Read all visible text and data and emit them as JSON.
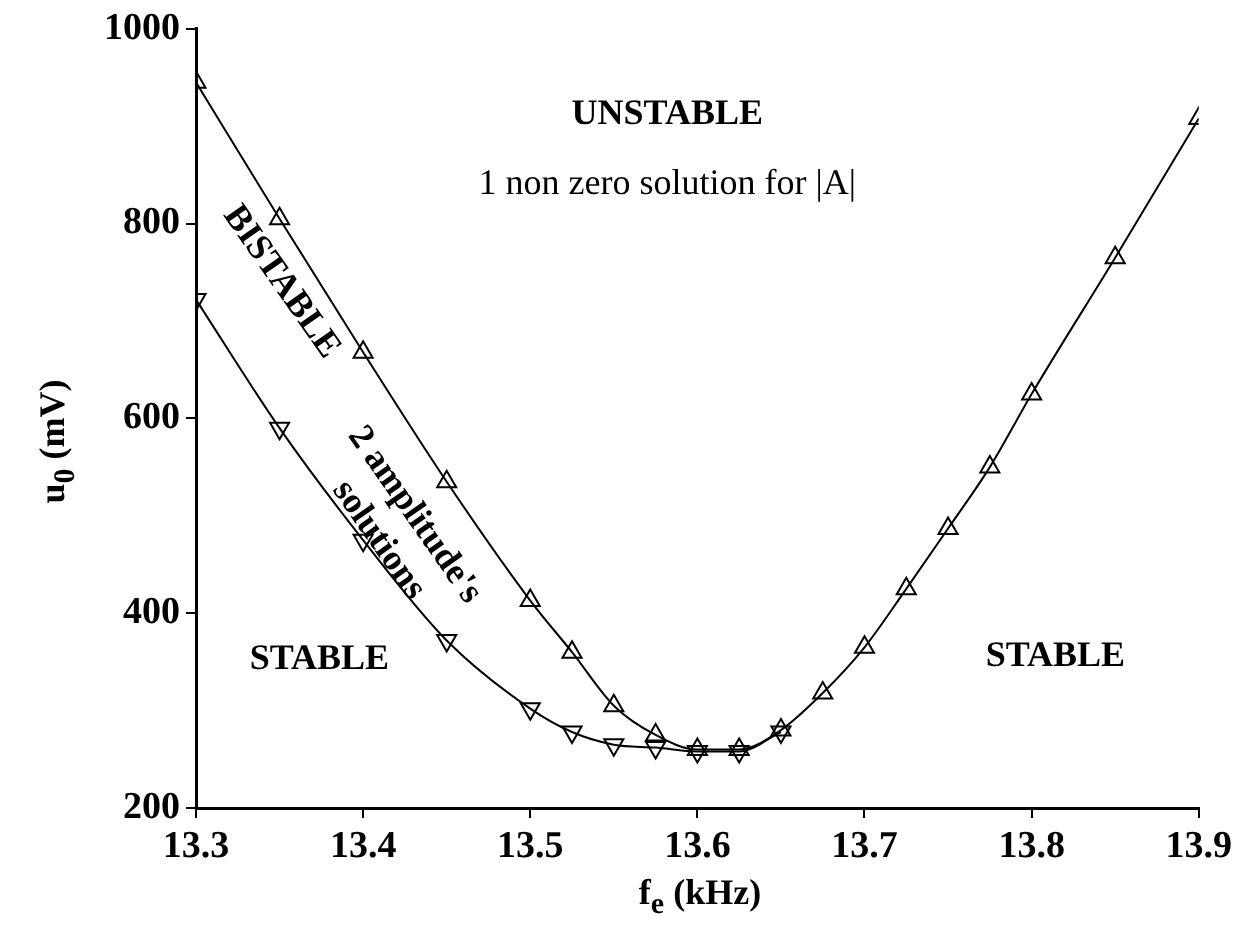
{
  "chart_data": {
    "type": "line",
    "xlabel": "f$_{e}$ (kHz)",
    "ylabel": "u$_{0}$ (mV)",
    "xlim": [
      13.3,
      13.9
    ],
    "xticks": [
      13.3,
      13.4,
      13.5,
      13.6,
      13.7,
      13.8,
      13.9
    ],
    "ylim": [
      200,
      1000
    ],
    "yticks": [
      200,
      400,
      600,
      800,
      1000
    ],
    "grid": false,
    "legend": false,
    "line_style": "solid",
    "series": [
      {
        "color": "#000000",
        "marker": "triangle",
        "x": [
          13.3,
          13.35,
          13.4,
          13.45,
          13.5,
          13.525,
          13.55,
          13.575,
          13.6,
          13.625,
          13.65,
          13.675,
          13.7,
          13.725,
          13.75,
          13.775,
          13.8,
          13.85,
          13.9
        ],
        "values": [
          945,
          805,
          668,
          535,
          413,
          360,
          305,
          275,
          260,
          260,
          280,
          318,
          365,
          425,
          487,
          550,
          625,
          765,
          908
        ]
      },
      {
        "color": "#000000",
        "marker": "triangle_down",
        "x": [
          13.3,
          13.35,
          13.4,
          13.45,
          13.5,
          13.525,
          13.55,
          13.575,
          13.6,
          13.625,
          13.65
        ],
        "values": [
          722,
          590,
          475,
          372,
          302,
          278,
          265,
          262,
          258,
          258,
          278
        ]
      }
    ],
    "annotations": [
      "UNSTABLE",
      "1 non zero solution for |A|",
      "BISTABLE",
      "2 amplitude's solutions",
      "STABLE",
      "STABLE"
    ]
  }
}
